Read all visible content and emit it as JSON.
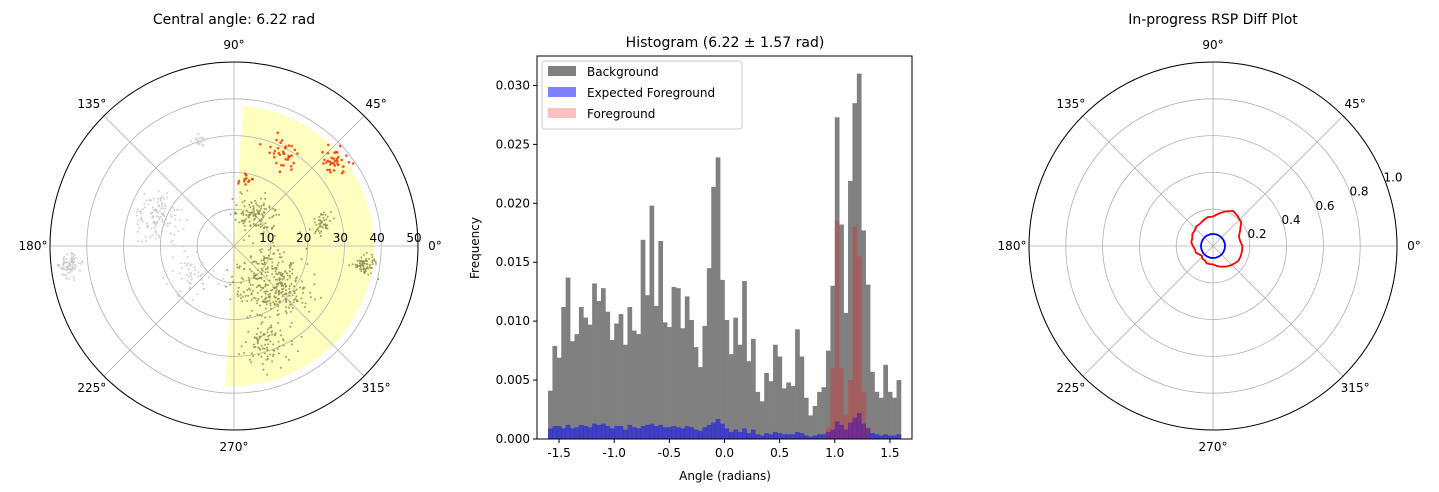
{
  "chart_data": [
    {
      "type": "scatter",
      "projection": "polar",
      "title": "Central angle: 6.22 rad",
      "angle_tick_labels": [
        "0°",
        "45°",
        "90°",
        "135°",
        "180°",
        "225°",
        "270°",
        "315°"
      ],
      "radial_tick_labels": [
        "10",
        "20",
        "30",
        "40",
        "50"
      ],
      "rlim": [
        0,
        50
      ],
      "grid": true,
      "highlight_sector": {
        "center_rad": 6.22,
        "half_width_rad": 1.57,
        "r_max": 38,
        "color": "#ffffc0"
      },
      "clusters": [
        {
          "theta_deg": 14,
          "r": 25,
          "spread": 3.0,
          "count": 45,
          "kind": "inside"
        },
        {
          "theta_deg": 63,
          "r": 28,
          "spread": 4.2,
          "count": 35,
          "kind": "foreground"
        },
        {
          "theta_deg": 40,
          "r": 36,
          "spread": 4.0,
          "count": 35,
          "kind": "foreground"
        },
        {
          "theta_deg": 78,
          "r": 18,
          "spread": 2.5,
          "count": 12,
          "kind": "foreground"
        },
        {
          "theta_deg": 60,
          "r": 10,
          "spread": 6.0,
          "count": 120,
          "kind": "inside"
        },
        {
          "theta_deg": -8,
          "r": 36,
          "spread": 3.0,
          "count": 70,
          "kind": "inside"
        },
        {
          "theta_deg": -45,
          "r": 15,
          "spread": 10.0,
          "count": 330,
          "kind": "inside"
        },
        {
          "theta_deg": -70,
          "r": 28,
          "spread": 6.0,
          "count": 90,
          "kind": "inside"
        },
        {
          "theta_deg": 160,
          "r": 22,
          "spread": 6.0,
          "count": 130,
          "kind": "outside"
        },
        {
          "theta_deg": 187,
          "r": 45,
          "spread": 3.0,
          "count": 90,
          "kind": "outside"
        },
        {
          "theta_deg": 108,
          "r": 30,
          "spread": 2.0,
          "count": 20,
          "kind": "outside"
        },
        {
          "theta_deg": 215,
          "r": 14,
          "spread": 6.0,
          "count": 60,
          "kind": "outside"
        }
      ],
      "colors": {
        "inside": "#8e8e50",
        "outside": "#c8c8c8",
        "foreground": "#ff3300"
      }
    },
    {
      "type": "bar",
      "subtype": "histogram",
      "title": "Histogram (6.22 ± 1.57 rad)",
      "xlabel": "Angle (radians)",
      "ylabel": "Frequency",
      "xlim": [
        -1.7,
        1.7
      ],
      "ylim": [
        0,
        0.0325
      ],
      "xticks": [
        "-1.5",
        "-1.0",
        "-0.5",
        "0.0",
        "0.5",
        "1.0",
        "1.5"
      ],
      "yticks": [
        "0.000",
        "0.005",
        "0.010",
        "0.015",
        "0.020",
        "0.025",
        "0.030"
      ],
      "bin_start": -1.6,
      "bin_width": 0.04,
      "series": [
        {
          "name": "Background",
          "color": "#808080",
          "values": [
            0.0041,
            0.0079,
            0.0069,
            0.0112,
            0.0137,
            0.0083,
            0.0089,
            0.0112,
            0.0103,
            0.0097,
            0.0132,
            0.0117,
            0.0128,
            0.0108,
            0.0084,
            0.0098,
            0.0106,
            0.008,
            0.0112,
            0.0092,
            0.0089,
            0.0169,
            0.0122,
            0.0198,
            0.0113,
            0.0168,
            0.0099,
            0.0095,
            0.0129,
            0.0128,
            0.0094,
            0.0121,
            0.0101,
            0.0078,
            0.0061,
            0.0096,
            0.0145,
            0.0214,
            0.0239,
            0.0135,
            0.0101,
            0.0072,
            0.0103,
            0.008,
            0.0134,
            0.0066,
            0.0085,
            0.004,
            0.0032,
            0.0056,
            0.0049,
            0.008,
            0.007,
            0.0043,
            0.0048,
            0.0045,
            0.0093,
            0.007,
            0.0035,
            0.002,
            0.0028,
            0.004,
            0.0044,
            0.0075,
            0.013,
            0.0273,
            0.0182,
            0.0107,
            0.0219,
            0.0285,
            0.031,
            0.0177,
            0.0131,
            0.0057,
            0.004,
            0.0035,
            0.0063,
            0.004,
            0.0035,
            0.005
          ]
        },
        {
          "name": "Expected Foreground",
          "color": "#0000ff",
          "opacity": 0.5,
          "values": [
            0.0009,
            0.0011,
            0.0011,
            0.0009,
            0.0012,
            0.0009,
            0.001,
            0.0012,
            0.0011,
            0.001,
            0.0013,
            0.0012,
            0.0013,
            0.0011,
            0.0009,
            0.0011,
            0.0011,
            0.0008,
            0.0012,
            0.001,
            0.0009,
            0.0011,
            0.0012,
            0.0013,
            0.0011,
            0.0012,
            0.001,
            0.001,
            0.0011,
            0.001,
            0.0009,
            0.0011,
            0.001,
            0.0008,
            0.0007,
            0.001,
            0.0012,
            0.0014,
            0.0017,
            0.0013,
            0.0009,
            0.0006,
            0.0008,
            0.0006,
            0.0009,
            0.0005,
            0.0008,
            0.0004,
            0.0003,
            0.0005,
            0.0004,
            0.0006,
            0.0005,
            0.0004,
            0.0004,
            0.0004,
            0.0006,
            0.0005,
            0.0003,
            0.0002,
            0.0003,
            0.0004,
            0.0004,
            0.0006,
            0.0008,
            0.0015,
            0.0012,
            0.0008,
            0.0014,
            0.0018,
            0.0022,
            0.0013,
            0.0009,
            0.0005,
            0.0004,
            0.0003,
            0.0004,
            0.0003,
            0.0003,
            0.0004
          ]
        },
        {
          "name": "Foreground",
          "color": "#ff0000",
          "opacity": 0.25,
          "values": [
            0,
            0,
            0,
            0,
            0,
            0,
            0,
            0,
            0,
            0,
            0,
            0,
            0,
            0,
            0,
            0,
            0,
            0,
            0,
            0,
            0,
            0,
            0,
            0,
            0,
            0,
            0,
            0,
            0,
            0,
            0,
            0,
            0,
            0,
            0,
            0,
            0,
            0,
            0,
            0,
            0,
            0,
            0,
            0,
            0,
            0,
            0,
            0,
            0,
            0,
            0,
            0,
            0,
            0,
            0,
            0,
            0,
            0,
            0,
            0,
            0,
            0,
            0,
            0.001,
            0.006,
            0.0185,
            0.006,
            0.002,
            0.005,
            0.018,
            0.0155,
            0.004,
            0.001,
            0,
            0,
            0,
            0,
            0,
            0,
            0
          ]
        }
      ],
      "legend": {
        "position": "top-left"
      }
    },
    {
      "type": "line",
      "projection": "polar",
      "title": "In-progress RSP Diff Plot",
      "angle_tick_labels": [
        "0°",
        "45°",
        "90°",
        "135°",
        "180°",
        "225°",
        "270°",
        "315°"
      ],
      "radial_ticks": [
        0.2,
        0.4,
        0.6,
        0.8,
        1.0
      ],
      "radial_tick_labels": [
        "0.2",
        "0.4",
        "0.6",
        "0.8",
        "1.0"
      ],
      "rlim": [
        0,
        1.0
      ],
      "grid": true,
      "series": [
        {
          "name": "",
          "color": "#ff0000",
          "closed": true,
          "theta_deg": [
            0,
            10,
            20,
            30,
            40,
            50,
            60,
            70,
            80,
            90,
            100,
            110,
            120,
            130,
            140,
            150,
            160,
            170,
            180,
            190,
            200,
            210,
            220,
            230,
            240,
            250,
            260,
            270,
            280,
            290,
            300,
            310,
            320,
            330,
            340,
            350
          ],
          "r": [
            0.16,
            0.15,
            0.15,
            0.17,
            0.2,
            0.21,
            0.22,
            0.2,
            0.18,
            0.16,
            0.16,
            0.15,
            0.14,
            0.14,
            0.13,
            0.13,
            0.12,
            0.12,
            0.11,
            0.1,
            0.1,
            0.09,
            0.08,
            0.09,
            0.09,
            0.1,
            0.1,
            0.1,
            0.11,
            0.12,
            0.13,
            0.14,
            0.15,
            0.16,
            0.16,
            0.16
          ]
        },
        {
          "name": "",
          "color": "#0000ff",
          "closed": true,
          "constant_r": 0.065
        }
      ]
    }
  ]
}
